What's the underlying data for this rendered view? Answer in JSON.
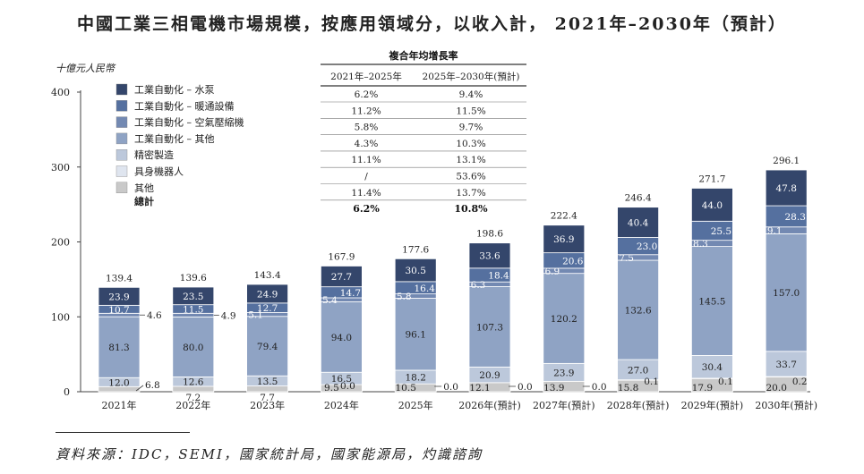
{
  "title": "中國工業三相電機市場規模，按應用領域分，以收入計， 2021年–2030年（預計）",
  "unit_label": "十億元人民幣",
  "source": "資料來源：IDC，SEMI，國家統計局，國家能源局，灼識諮詢",
  "cagr_table": {
    "title": "複合年均增長率",
    "columns": [
      "2021年–2025年",
      "2025年–2030年(預計)"
    ],
    "rows": [
      [
        "6.2%",
        "9.4%"
      ],
      [
        "11.2%",
        "11.5%"
      ],
      [
        "5.8%",
        "9.7%"
      ],
      [
        "4.3%",
        "10.3%"
      ],
      [
        "11.1%",
        "13.1%"
      ],
      [
        "/",
        "53.6%"
      ],
      [
        "11.4%",
        "13.7%"
      ],
      [
        "6.2%",
        "10.8%"
      ]
    ]
  },
  "chart_data": {
    "type": "bar",
    "stacked": true,
    "categories": [
      "2021年",
      "2022年",
      "2023年",
      "2024年",
      "2025年",
      "2026年(預計)",
      "2027年(預計)",
      "2028年(預計)",
      "2029年(預計)",
      "2030年(預計)"
    ],
    "ylabel": "十億元人民幣",
    "ylim": [
      0,
      400
    ],
    "yticks": [
      0,
      100,
      200,
      300,
      400
    ],
    "grid": false,
    "legend_position": "top-left",
    "series": [
      {
        "name": "其他",
        "color": "#c9c9c9",
        "values": [
          6.8,
          7.2,
          7.7,
          9.5,
          10.5,
          12.1,
          13.9,
          15.8,
          17.9,
          20.0
        ]
      },
      {
        "name": "具身機器人",
        "color": "#dfe5ef",
        "values": [
          0.0,
          0.0,
          0.0,
          0.0,
          0.0,
          0.0,
          0.0,
          0.1,
          0.1,
          0.2
        ]
      },
      {
        "name": "精密製造",
        "color": "#bcc8db",
        "values": [
          12.0,
          12.6,
          13.5,
          16.5,
          18.2,
          20.9,
          23.9,
          27.0,
          30.4,
          33.7
        ]
      },
      {
        "name": "工業自動化 – 其他",
        "color": "#8fa3c4",
        "values": [
          81.3,
          80.0,
          79.4,
          94.0,
          96.1,
          107.3,
          120.2,
          132.6,
          145.5,
          157.0
        ]
      },
      {
        "name": "工業自動化 – 空氣壓縮機",
        "color": "#7389b2",
        "values": [
          4.6,
          4.9,
          5.1,
          5.4,
          5.8,
          6.3,
          6.9,
          7.5,
          8.3,
          9.1
        ]
      },
      {
        "name": "工業自動化 – 暖通設備",
        "color": "#55709f",
        "values": [
          10.7,
          11.5,
          12.7,
          14.7,
          16.4,
          18.4,
          20.6,
          23.0,
          25.5,
          28.3
        ]
      },
      {
        "name": "工業自動化 – 水泵",
        "color": "#34466b",
        "values": [
          23.9,
          23.5,
          24.9,
          27.7,
          30.5,
          33.6,
          36.9,
          40.4,
          44.0,
          47.8
        ]
      }
    ],
    "value_labels": [
      [
        "6.8",
        "7.2",
        "7.7",
        "9.5",
        "10.5",
        "12.1",
        "13.9",
        "15.8",
        "17.9",
        "20.0"
      ],
      [
        "",
        "",
        "",
        "0.0",
        "0.0",
        "0.0",
        "0.0",
        "0.1",
        "0.1",
        "0.2"
      ],
      [
        "12.0",
        "12.6",
        "13.5",
        "16.5",
        "18.2",
        "20.9",
        "23.9",
        "27.0",
        "30.4",
        "33.7"
      ],
      [
        "81.3",
        "80.0",
        "79.4",
        "94.0",
        "96.1",
        "107.3",
        "120.2",
        "132.6",
        "145.5",
        "157.0"
      ],
      [
        "4.6",
        "4.9",
        "5.1",
        "5.4",
        "5.8",
        "6.3",
        "6.9",
        "7.5",
        "8.3",
        "9.1"
      ],
      [
        "10.7",
        "11.5",
        "12.7",
        "14.7",
        "16.4",
        "18.4",
        "20.6",
        "23.0",
        "25.5",
        "28.3"
      ],
      [
        "23.9",
        "23.5",
        "24.9",
        "27.7",
        "30.5",
        "33.6",
        "36.9",
        "40.4",
        "44.0",
        "47.8"
      ]
    ],
    "totals": [
      139.4,
      139.6,
      143.4,
      167.9,
      177.6,
      198.6,
      222.4,
      246.4,
      271.7,
      296.1
    ],
    "totals_labels": [
      "139.4",
      "139.6",
      "143.4",
      "167.9",
      "177.6",
      "198.6",
      "222.4",
      "246.4",
      "271.7",
      "296.1"
    ],
    "legend": [
      {
        "name": "工業自動化 – 水泵",
        "color": "#34466b"
      },
      {
        "name": "工業自動化 – 暖通設備",
        "color": "#55709f"
      },
      {
        "name": "工業自動化 – 空氣壓縮機",
        "color": "#7389b2"
      },
      {
        "name": "工業自動化 – 其他",
        "color": "#8fa3c4"
      },
      {
        "name": "精密製造",
        "color": "#bcc8db"
      },
      {
        "name": "具身機器人",
        "color": "#dfe5ef"
      },
      {
        "name": "其他",
        "color": "#c9c9c9"
      },
      {
        "name": "總計",
        "color": ""
      }
    ]
  }
}
